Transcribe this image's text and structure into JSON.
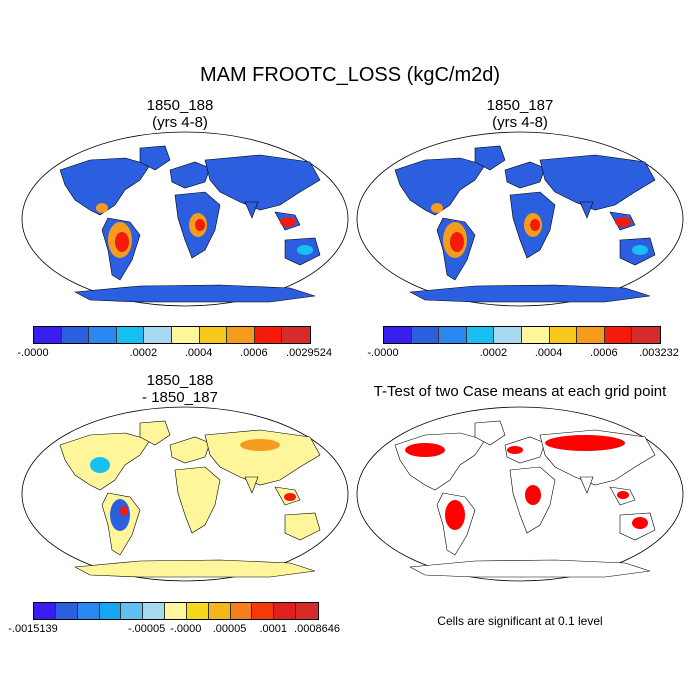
{
  "figure": {
    "title": "MAM FROOTC_LOSS (kgC/m2d)",
    "footnote": "Cells are significant at 0.1 level"
  },
  "panels": [
    {
      "title_line1": "1850_188",
      "title_line2": "(yrs 4-8)"
    },
    {
      "title_line1": "1850_187",
      "title_line2": "(yrs 4-8)"
    },
    {
      "title_line1": "1850_188",
      "title_line2": "- 1850_187"
    },
    {
      "title_line1": "T-Test of two Case means at each grid point",
      "title_line2": ""
    }
  ],
  "colorbars": [
    {
      "colors": [
        "#3a1ef0",
        "#2b5fe0",
        "#2a86f0",
        "#17c0f0",
        "#a6d8f0",
        "#fff59a",
        "#f6c81a",
        "#f59b1d",
        "#f51a0a",
        "#d62b2b"
      ],
      "ticks": [
        {
          "label": "-.0000",
          "at": 0
        },
        {
          "label": ".0002",
          "at": 0.4
        },
        {
          "label": ".0004",
          "at": 0.6
        },
        {
          "label": ".0006",
          "at": 0.8
        },
        {
          "label": ".0029524",
          "at": 1.0
        }
      ]
    },
    {
      "colors": [
        "#3a1ef0",
        "#2b5fe0",
        "#2a86f0",
        "#17c0f0",
        "#a6d8f0",
        "#fff59a",
        "#f6c81a",
        "#f59b1d",
        "#f51a0a",
        "#d62b2b"
      ],
      "ticks": [
        {
          "label": "-.0000",
          "at": 0
        },
        {
          "label": ".0002",
          "at": 0.4
        },
        {
          "label": ".0004",
          "at": 0.6
        },
        {
          "label": ".0006",
          "at": 0.8
        },
        {
          "label": ".003232",
          "at": 1.0
        }
      ]
    },
    {
      "colors": [
        "#3a1ef0",
        "#2b5fe0",
        "#2a86f0",
        "#17a6f0",
        "#60c0f0",
        "#a6d8f0",
        "#fff59a",
        "#f6d81a",
        "#f6b51a",
        "#f5801d",
        "#f53a0a",
        "#e01f1f",
        "#d62b2b"
      ],
      "ticks": [
        {
          "label": "-.0015139",
          "at": 0
        },
        {
          "label": "-.00005",
          "at": 0.4
        },
        {
          "label": "-.0000",
          "at": 0.538
        },
        {
          "label": ".00005",
          "at": 0.692
        },
        {
          "label": ".0001",
          "at": 0.846
        },
        {
          "label": ".0008646",
          "at": 1.0
        }
      ]
    }
  ],
  "map_colors": {
    "ocean": "#ffffff",
    "land_low": "#2b5fe0",
    "land_mid": "#17c0f0",
    "land_high": "#f51a0a",
    "land_warm": "#f59b1d",
    "diff_base": "#fff59a",
    "signif": "#ff0000"
  }
}
